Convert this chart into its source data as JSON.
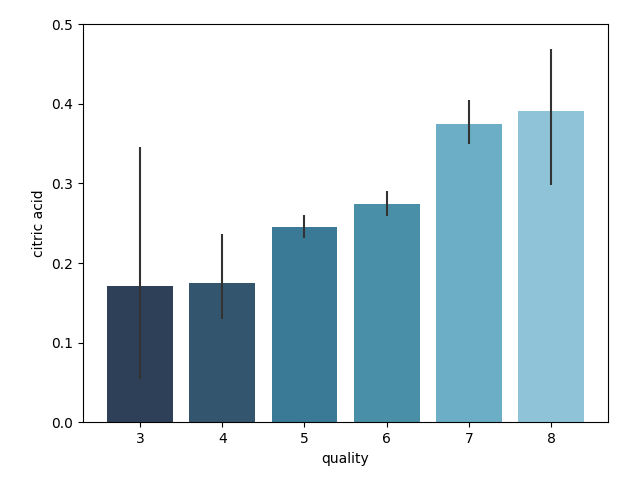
{
  "categories": [
    3,
    4,
    5,
    6,
    7,
    8
  ],
  "values": [
    0.171,
    0.175,
    0.245,
    0.274,
    0.375,
    0.391
  ],
  "yerr_lower": [
    0.117,
    0.045,
    0.013,
    0.015,
    0.025,
    0.093
  ],
  "yerr_upper": [
    0.175,
    0.062,
    0.015,
    0.017,
    0.03,
    0.078
  ],
  "bar_colors": [
    "#2d4057",
    "#33566e",
    "#3a7a96",
    "#4a8fa8",
    "#6baec6",
    "#8ec3d8"
  ],
  "xlabel": "quality",
  "ylabel": "citric acid",
  "ylim": [
    0.0,
    0.5
  ],
  "title": "",
  "figsize": [
    6.4,
    4.8
  ],
  "dpi": 100
}
